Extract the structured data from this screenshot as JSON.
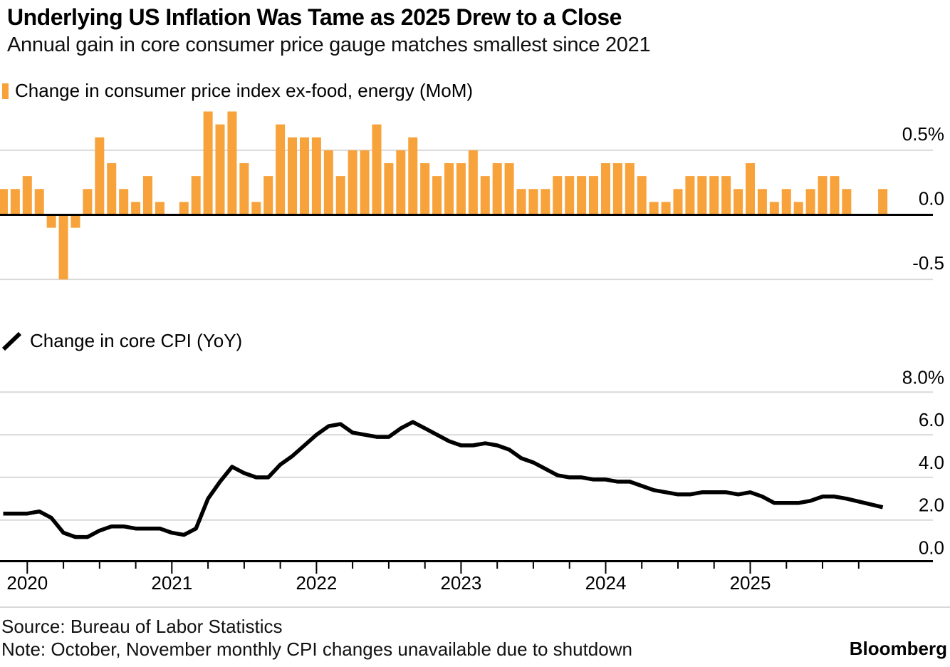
{
  "header": {
    "title": "Underlying US Inflation Was Tame as 2025 Drew to a Close",
    "subtitle": "Annual gain in core consumer price gauge matches smallest since 2021"
  },
  "colors": {
    "bar_orange": "#F7A23B",
    "line_black": "#000000",
    "grid_gray": "#D9D9D9",
    "axis_black": "#000000",
    "background": "#FFFFFF"
  },
  "chart_data": [
    {
      "type": "bar",
      "legend": "Change in consumer price index ex-food, energy (MoM)",
      "unit": "%",
      "ylim": [
        -0.62,
        0.84
      ],
      "grid": true,
      "legend_position": "top-left",
      "ytick_side": "right",
      "yticks": [
        {
          "v": 0.5,
          "label": "0.5%"
        },
        {
          "v": 0.0,
          "label": "0.0"
        },
        {
          "v": -0.5,
          "label": "-0.5"
        }
      ],
      "missing_months": [
        "2025-10",
        "2025-11"
      ],
      "x": [
        "2019-11",
        "2019-12",
        "2020-01",
        "2020-02",
        "2020-03",
        "2020-04",
        "2020-05",
        "2020-06",
        "2020-07",
        "2020-08",
        "2020-09",
        "2020-10",
        "2020-11",
        "2020-12",
        "2021-01",
        "2021-02",
        "2021-03",
        "2021-04",
        "2021-05",
        "2021-06",
        "2021-07",
        "2021-08",
        "2021-09",
        "2021-10",
        "2021-11",
        "2021-12",
        "2022-01",
        "2022-02",
        "2022-03",
        "2022-04",
        "2022-05",
        "2022-06",
        "2022-07",
        "2022-08",
        "2022-09",
        "2022-10",
        "2022-11",
        "2022-12",
        "2023-01",
        "2023-02",
        "2023-03",
        "2023-04",
        "2023-05",
        "2023-06",
        "2023-07",
        "2023-08",
        "2023-09",
        "2023-10",
        "2023-11",
        "2023-12",
        "2024-01",
        "2024-02",
        "2024-03",
        "2024-04",
        "2024-05",
        "2024-06",
        "2024-07",
        "2024-08",
        "2024-09",
        "2024-10",
        "2024-11",
        "2024-12",
        "2025-01",
        "2025-02",
        "2025-03",
        "2025-04",
        "2025-05",
        "2025-06",
        "2025-07",
        "2025-08",
        "2025-09",
        "2025-10",
        "2025-11",
        "2025-12"
      ],
      "values": [
        0.2,
        0.2,
        0.3,
        0.2,
        -0.1,
        -0.5,
        -0.1,
        0.2,
        0.6,
        0.4,
        0.2,
        0.1,
        0.3,
        0.1,
        0.0,
        0.1,
        0.3,
        0.8,
        0.7,
        0.8,
        0.4,
        0.1,
        0.3,
        0.7,
        0.6,
        0.6,
        0.6,
        0.5,
        0.3,
        0.5,
        0.5,
        0.7,
        0.4,
        0.5,
        0.6,
        0.4,
        0.3,
        0.4,
        0.4,
        0.5,
        0.3,
        0.4,
        0.4,
        0.2,
        0.2,
        0.2,
        0.3,
        0.3,
        0.3,
        0.3,
        0.4,
        0.4,
        0.4,
        0.3,
        0.1,
        0.1,
        0.2,
        0.3,
        0.3,
        0.3,
        0.3,
        0.2,
        0.4,
        0.2,
        0.1,
        0.2,
        0.1,
        0.2,
        0.3,
        0.3,
        0.2,
        null,
        null,
        0.2
      ]
    },
    {
      "type": "line",
      "legend": "Change in core CPI (YoY)",
      "unit": "%",
      "ylim": [
        -0.6,
        8.9
      ],
      "grid": true,
      "legend_position": "top-left",
      "ytick_side": "right",
      "yticks": [
        {
          "v": 8,
          "label": "8.0%"
        },
        {
          "v": 6,
          "label": "6.0"
        },
        {
          "v": 4,
          "label": "4.0"
        },
        {
          "v": 2,
          "label": "2.0"
        },
        {
          "v": 0,
          "label": "0.0"
        }
      ],
      "xticks": [
        "2020",
        "2021",
        "2022",
        "2023",
        "2024",
        "2025"
      ],
      "x": [
        "2019-11",
        "2019-12",
        "2020-01",
        "2020-02",
        "2020-03",
        "2020-04",
        "2020-05",
        "2020-06",
        "2020-07",
        "2020-08",
        "2020-09",
        "2020-10",
        "2020-11",
        "2020-12",
        "2021-01",
        "2021-02",
        "2021-03",
        "2021-04",
        "2021-05",
        "2021-06",
        "2021-07",
        "2021-08",
        "2021-09",
        "2021-10",
        "2021-11",
        "2021-12",
        "2022-01",
        "2022-02",
        "2022-03",
        "2022-04",
        "2022-05",
        "2022-06",
        "2022-07",
        "2022-08",
        "2022-09",
        "2022-10",
        "2022-11",
        "2022-12",
        "2023-01",
        "2023-02",
        "2023-03",
        "2023-04",
        "2023-05",
        "2023-06",
        "2023-07",
        "2023-08",
        "2023-09",
        "2023-10",
        "2023-11",
        "2023-12",
        "2024-01",
        "2024-02",
        "2024-03",
        "2024-04",
        "2024-05",
        "2024-06",
        "2024-07",
        "2024-08",
        "2024-09",
        "2024-10",
        "2024-11",
        "2024-12",
        "2025-01",
        "2025-02",
        "2025-03",
        "2025-04",
        "2025-05",
        "2025-06",
        "2025-07",
        "2025-08",
        "2025-09",
        "2025-10",
        "2025-11",
        "2025-12"
      ],
      "values": [
        2.3,
        2.3,
        2.3,
        2.4,
        2.1,
        1.4,
        1.2,
        1.2,
        1.5,
        1.7,
        1.7,
        1.6,
        1.6,
        1.6,
        1.4,
        1.3,
        1.6,
        3.0,
        3.8,
        4.5,
        4.2,
        4.0,
        4.0,
        4.6,
        5.0,
        5.5,
        6.0,
        6.4,
        6.5,
        6.1,
        6.0,
        5.9,
        5.9,
        6.3,
        6.6,
        6.3,
        6.0,
        5.7,
        5.5,
        5.5,
        5.6,
        5.5,
        5.3,
        4.9,
        4.7,
        4.4,
        4.1,
        4.0,
        4.0,
        3.9,
        3.9,
        3.8,
        3.8,
        3.6,
        3.4,
        3.3,
        3.2,
        3.2,
        3.3,
        3.3,
        3.3,
        3.2,
        3.3,
        3.1,
        2.8,
        2.8,
        2.8,
        2.9,
        3.1,
        3.1,
        3.0,
        null,
        null,
        2.6
      ]
    }
  ],
  "footer": {
    "source": "Source: Bureau of Labor Statistics",
    "note": "Note: October, November monthly CPI changes unavailable due to shutdown",
    "brand": "Bloomberg"
  }
}
